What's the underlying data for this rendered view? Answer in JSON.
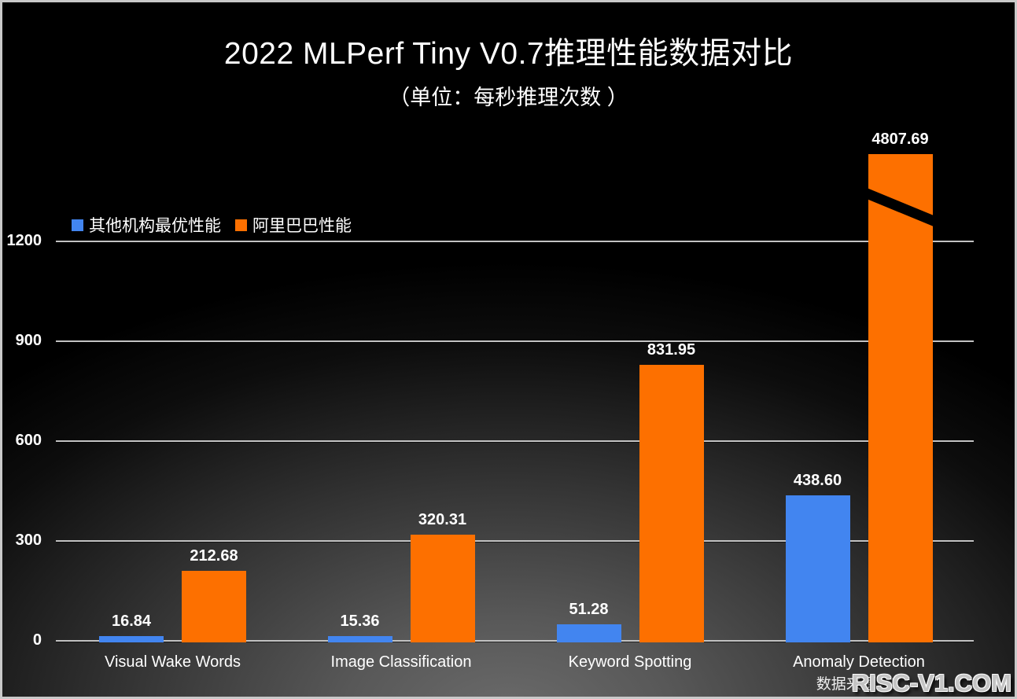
{
  "source": {
    "text": "数据来源：I"
  },
  "watermark": {
    "text": "RISC-V1.COM"
  },
  "chart_data": {
    "type": "bar",
    "title": "2022 MLPerf Tiny V0.7推理性能数据对比",
    "subtitle": "（单位：每秒推理次数 ）",
    "unit": "每秒推理次数",
    "categories": [
      "Visual Wake Words",
      "Image Classification",
      "Keyword Spotting",
      "Anomaly Detection"
    ],
    "series": [
      {
        "name": "其他机构最优性能",
        "color": "#4285f0",
        "values": [
          16.84,
          15.36,
          51.28,
          438.6
        ],
        "labels": [
          "16.84",
          "15.36",
          "51.28",
          "438.60"
        ]
      },
      {
        "name": "阿里巴巴性能",
        "color": "#fd7000",
        "values": [
          212.68,
          320.31,
          831.95,
          4807.69
        ],
        "labels": [
          "212.68",
          "320.31",
          "831.95",
          "4807.69"
        ]
      }
    ],
    "y_ticks": [
      0,
      300,
      600,
      900,
      1200
    ],
    "y_tick_labels": [
      "0",
      "300",
      "600",
      "900",
      "1200"
    ],
    "ylim": [
      0,
      1465
    ],
    "grid": true,
    "legend_position": "top-left-inside",
    "axis_break": {
      "series_index": 1,
      "category_index": 3,
      "note": "bar for 4807.69 exceeds axis maximum and is truncated with a diagonal break mark"
    }
  }
}
